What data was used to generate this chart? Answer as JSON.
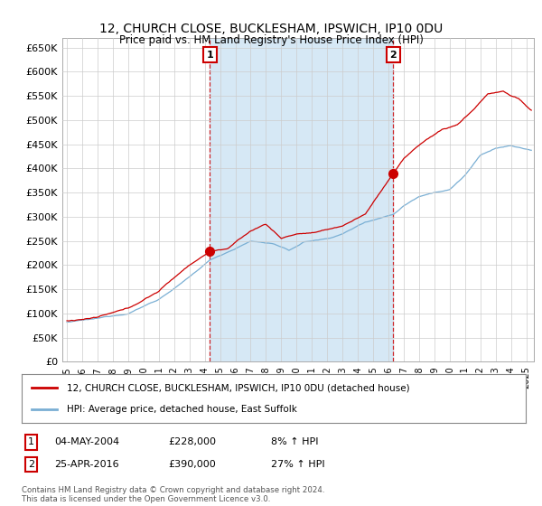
{
  "title": "12, CHURCH CLOSE, BUCKLESHAM, IPSWICH, IP10 0DU",
  "subtitle": "Price paid vs. HM Land Registry's House Price Index (HPI)",
  "ylabel_ticks": [
    0,
    50000,
    100000,
    150000,
    200000,
    250000,
    300000,
    350000,
    400000,
    450000,
    500000,
    550000,
    600000,
    650000
  ],
  "ylim": [
    0,
    670000
  ],
  "xlim_start": 1994.7,
  "xlim_end": 2025.5,
  "sale1_x": 2004.34,
  "sale1_y": 228000,
  "sale2_x": 2016.32,
  "sale2_y": 390000,
  "sale1_label": "1",
  "sale2_label": "2",
  "sale1_date": "04-MAY-2004",
  "sale1_price": "£228,000",
  "sale1_hpi": "8% ↑ HPI",
  "sale2_date": "25-APR-2016",
  "sale2_price": "£390,000",
  "sale2_hpi": "27% ↑ HPI",
  "legend1": "12, CHURCH CLOSE, BUCKLESHAM, IPSWICH, IP10 0DU (detached house)",
  "legend2": "HPI: Average price, detached house, East Suffolk",
  "footnote": "Contains HM Land Registry data © Crown copyright and database right 2024.\nThis data is licensed under the Open Government Licence v3.0.",
  "line_color_property": "#cc0000",
  "line_color_hpi": "#7aafd4",
  "vline_color": "#cc0000",
  "dot_color_property": "#cc0000",
  "background_color": "#ffffff",
  "grid_color": "#cccccc",
  "label_box_color": "#cc0000",
  "shade_color": "#d6e8f5"
}
